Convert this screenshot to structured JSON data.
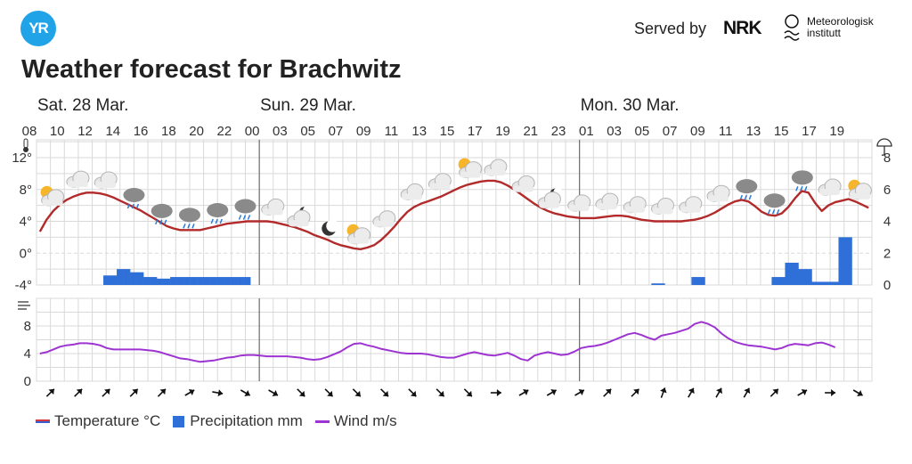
{
  "header": {
    "logo_text": "YR",
    "served_by": "Served by",
    "nrk_logo": "NRK",
    "met_logo_line1": "Meteorologisk",
    "met_logo_line2": "institutt",
    "title": "Weather forecast for Brachwitz"
  },
  "colors": {
    "temperature": "#b22a2a",
    "precipitation": "#2f6fd8",
    "wind": "#9d34d2",
    "grid": "#d9d9d9",
    "day_divider": "#555555"
  },
  "chart_data": [
    {
      "type": "line",
      "title": "",
      "day_labels": [
        {
          "label": "Sat. 28 Mar.",
          "start_index": 0
        },
        {
          "label": "Sun. 29 Mar.",
          "start_index": 16
        },
        {
          "label": "Mon. 30 Mar.",
          "start_index": 39
        }
      ],
      "hour_tick_labels": [
        "08",
        "10",
        "12",
        "14",
        "16",
        "18",
        "20",
        "22",
        "00",
        "03",
        "05",
        "07",
        "09",
        "11",
        "13",
        "15",
        "17",
        "19",
        "21",
        "23",
        "01",
        "03",
        "05",
        "07",
        "09",
        "11",
        "13",
        "15",
        "17",
        "19"
      ],
      "temperature_axis": {
        "icon": "thermometer-icon",
        "ticks": [
          "12°",
          "8°",
          "4°",
          "0°",
          "-4°"
        ],
        "ylim": [
          -4,
          12
        ]
      },
      "precipitation_axis": {
        "icon": "umbrella-icon",
        "ticks": [
          "8",
          "6",
          "4",
          "2",
          "0"
        ],
        "ylim": [
          0,
          8
        ]
      },
      "series": [
        {
          "name": "Temperature °C",
          "values": [
            2.7,
            4.2,
            5.3,
            6.1,
            6.7,
            7.1,
            7.4,
            7.6,
            7.6,
            7.5,
            7.3,
            7.0,
            6.6,
            6.2,
            5.8,
            5.4,
            4.9,
            4.4,
            3.9,
            3.4,
            3.1,
            2.9,
            2.9,
            2.9,
            2.9,
            3.1,
            3.3,
            3.5,
            3.7,
            3.8,
            3.9,
            4.0,
            4.0,
            4.0,
            4.0,
            3.9,
            3.7,
            3.5,
            3.3,
            3.0,
            2.7,
            2.3,
            2.0,
            1.7,
            1.3,
            1.0,
            0.8,
            0.6,
            0.5,
            0.7,
            1.0,
            1.6,
            2.4,
            3.3,
            4.3,
            5.2,
            5.8,
            6.2,
            6.5,
            6.8,
            7.1,
            7.5,
            7.9,
            8.3,
            8.6,
            8.8,
            9.0,
            9.1,
            9.1,
            8.9,
            8.5,
            8.0,
            7.4,
            6.8,
            6.2,
            5.7,
            5.3,
            5.0,
            4.8,
            4.6,
            4.5,
            4.4,
            4.4,
            4.4,
            4.5,
            4.6,
            4.7,
            4.7,
            4.6,
            4.4,
            4.2,
            4.1,
            4.0,
            4.0,
            4.0,
            4.0,
            4.0,
            4.1,
            4.2,
            4.4,
            4.7,
            5.1,
            5.6,
            6.1,
            6.5,
            6.7,
            6.5,
            5.9,
            5.2,
            4.8,
            4.7,
            5.0,
            5.8,
            6.9,
            7.8,
            7.6,
            6.3,
            5.3,
            6.0,
            6.4,
            6.6,
            6.8,
            6.5,
            6.1,
            5.7
          ]
        },
        {
          "name": "Precipitation mm",
          "values": [
            0,
            0,
            0,
            0,
            0,
            0,
            0,
            0,
            0,
            0,
            0.6,
            0.6,
            1.0,
            1.0,
            0.8,
            0.8,
            0.5,
            0.5,
            0.4,
            0.4,
            0.5,
            0.5,
            0.5,
            0.5,
            0.5,
            0.5,
            0.5,
            0.5,
            0.5,
            0.5,
            0.5,
            0.5,
            0,
            0,
            0,
            0,
            0,
            0,
            0,
            0,
            0,
            0,
            0,
            0,
            0,
            0,
            0,
            0,
            0,
            0,
            0,
            0,
            0,
            0,
            0,
            0,
            0,
            0,
            0,
            0,
            0,
            0,
            0,
            0,
            0,
            0,
            0,
            0,
            0,
            0,
            0,
            0,
            0,
            0,
            0,
            0,
            0,
            0,
            0,
            0,
            0,
            0,
            0,
            0,
            0,
            0,
            0,
            0,
            0,
            0,
            0,
            0,
            0.1,
            0.1,
            0,
            0,
            0,
            0,
            0.5,
            0.5,
            0,
            0,
            0,
            0,
            0,
            0,
            0,
            0,
            0,
            0,
            0.5,
            0.5,
            1.4,
            1.4,
            1.0,
            1.0,
            0.2,
            0.2,
            0.2,
            0.2,
            3.0,
            3.0,
            0,
            0,
            0,
            0,
            0,
            0
          ]
        }
      ]
    },
    {
      "type": "line",
      "title": "",
      "wind_axis": {
        "icon": "wind-icon",
        "ticks": [
          "8",
          "4",
          "0"
        ],
        "ylim": [
          0,
          12
        ]
      },
      "series": [
        {
          "name": "Wind m/s",
          "values": [
            4.0,
            4.2,
            4.6,
            5.0,
            5.2,
            5.3,
            5.5,
            5.5,
            5.4,
            5.2,
            4.8,
            4.6,
            4.6,
            4.6,
            4.6,
            4.6,
            4.5,
            4.4,
            4.2,
            3.9,
            3.6,
            3.3,
            3.2,
            3.0,
            2.8,
            2.9,
            3.0,
            3.2,
            3.4,
            3.5,
            3.7,
            3.8,
            3.8,
            3.7,
            3.6,
            3.6,
            3.6,
            3.6,
            3.5,
            3.4,
            3.2,
            3.1,
            3.2,
            3.5,
            3.9,
            4.3,
            4.9,
            5.4,
            5.5,
            5.2,
            5.0,
            4.7,
            4.5,
            4.3,
            4.1,
            4.0,
            4.0,
            4.0,
            3.9,
            3.7,
            3.5,
            3.4,
            3.4,
            3.7,
            4.0,
            4.2,
            4.0,
            3.8,
            3.7,
            3.9,
            4.1,
            3.7,
            3.2,
            3.0,
            3.7,
            4.0,
            4.2,
            4.0,
            3.8,
            3.9,
            4.3,
            4.8,
            5.0,
            5.1,
            5.3,
            5.6,
            6.0,
            6.4,
            6.8,
            7.0,
            6.7,
            6.3,
            6.0,
            6.6,
            6.8,
            7.0,
            7.3,
            7.6,
            8.3,
            8.6,
            8.3,
            7.8,
            6.9,
            6.2,
            5.7,
            5.4,
            5.2,
            5.1,
            5.0,
            4.8,
            4.6,
            4.8,
            5.2,
            5.4,
            5.3,
            5.2,
            5.5,
            5.6,
            5.3,
            4.9
          ]
        }
      ]
    }
  ],
  "symbols": [
    "partly-sunny",
    "cloudy",
    "cloudy",
    "rain-cloud",
    "rain-cloud",
    "rain-cloud",
    "rain-cloud",
    "rain-cloud",
    "cloudy",
    "cloudy-night",
    "night-moon",
    "partly-sunny",
    "cloudy",
    "cloudy",
    "cloudy",
    "partly-sunny",
    "cloudy",
    "cloudy",
    "cloudy-night",
    "cloudy",
    "cloudy",
    "cloudy",
    "cloudy",
    "cloudy",
    "cloudy",
    "rain-cloud",
    "rain-cloud",
    "rain-cloud",
    "cloudy",
    "partly-sunny"
  ],
  "wind_directions": [
    45,
    45,
    45,
    45,
    45,
    60,
    100,
    120,
    120,
    135,
    135,
    135,
    135,
    135,
    135,
    135,
    90,
    60,
    60,
    60,
    45,
    45,
    20,
    30,
    30,
    30,
    45,
    60,
    90,
    120
  ]
}
